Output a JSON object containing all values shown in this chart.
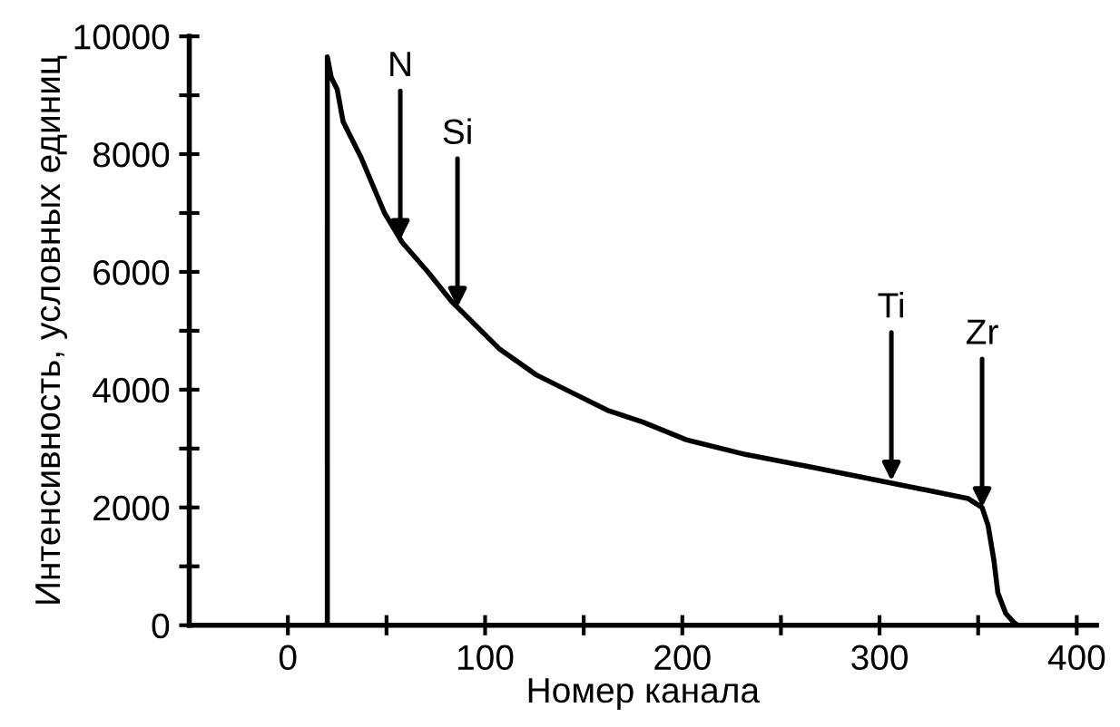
{
  "chart_data": {
    "type": "line",
    "xlabel": "Номер канала",
    "ylabel": "Интенсивность, условных единиц",
    "color": "#000000",
    "x": [
      20,
      20,
      22,
      25,
      28,
      37,
      49,
      58,
      71,
      83,
      95,
      107,
      126,
      144,
      162,
      180,
      202,
      232,
      263,
      293,
      323,
      345,
      352,
      355,
      358,
      360,
      364,
      368,
      370
    ],
    "values": [
      0,
      9650,
      9300,
      9100,
      8550,
      7950,
      7000,
      6500,
      6000,
      5500,
      5100,
      4700,
      4250,
      3950,
      3650,
      3450,
      3150,
      2900,
      2700,
      2500,
      2300,
      2150,
      2000,
      1700,
      1100,
      550,
      200,
      50,
      0
    ],
    "xlim": [
      -50,
      410
    ],
    "xticks": [
      0,
      {
        "value": 50,
        "label": null
      },
      100,
      {
        "value": 150,
        "label": null
      },
      200,
      {
        "value": 250,
        "label": null
      },
      300,
      {
        "value": 350,
        "label": null
      },
      400
    ],
    "ylim": [
      0,
      10000
    ],
    "yticks": [
      0,
      {
        "value": 1000,
        "label": null
      },
      2000,
      {
        "value": 3000,
        "label": null
      },
      4000,
      {
        "value": 5000,
        "label": null
      },
      6000,
      {
        "value": 7000,
        "label": null
      },
      8000,
      {
        "value": 9000,
        "label": null
      },
      10000
    ],
    "annotations": [
      {
        "text": "N",
        "x": 57,
        "y": 6550
      },
      {
        "text": "Si",
        "x": 86,
        "y": 5400
      },
      {
        "text": "Ti",
        "x": 306,
        "y": 2450
      },
      {
        "text": "Zr",
        "x": 352,
        "y": 2000
      }
    ],
    "grid": false,
    "legend": false
  }
}
